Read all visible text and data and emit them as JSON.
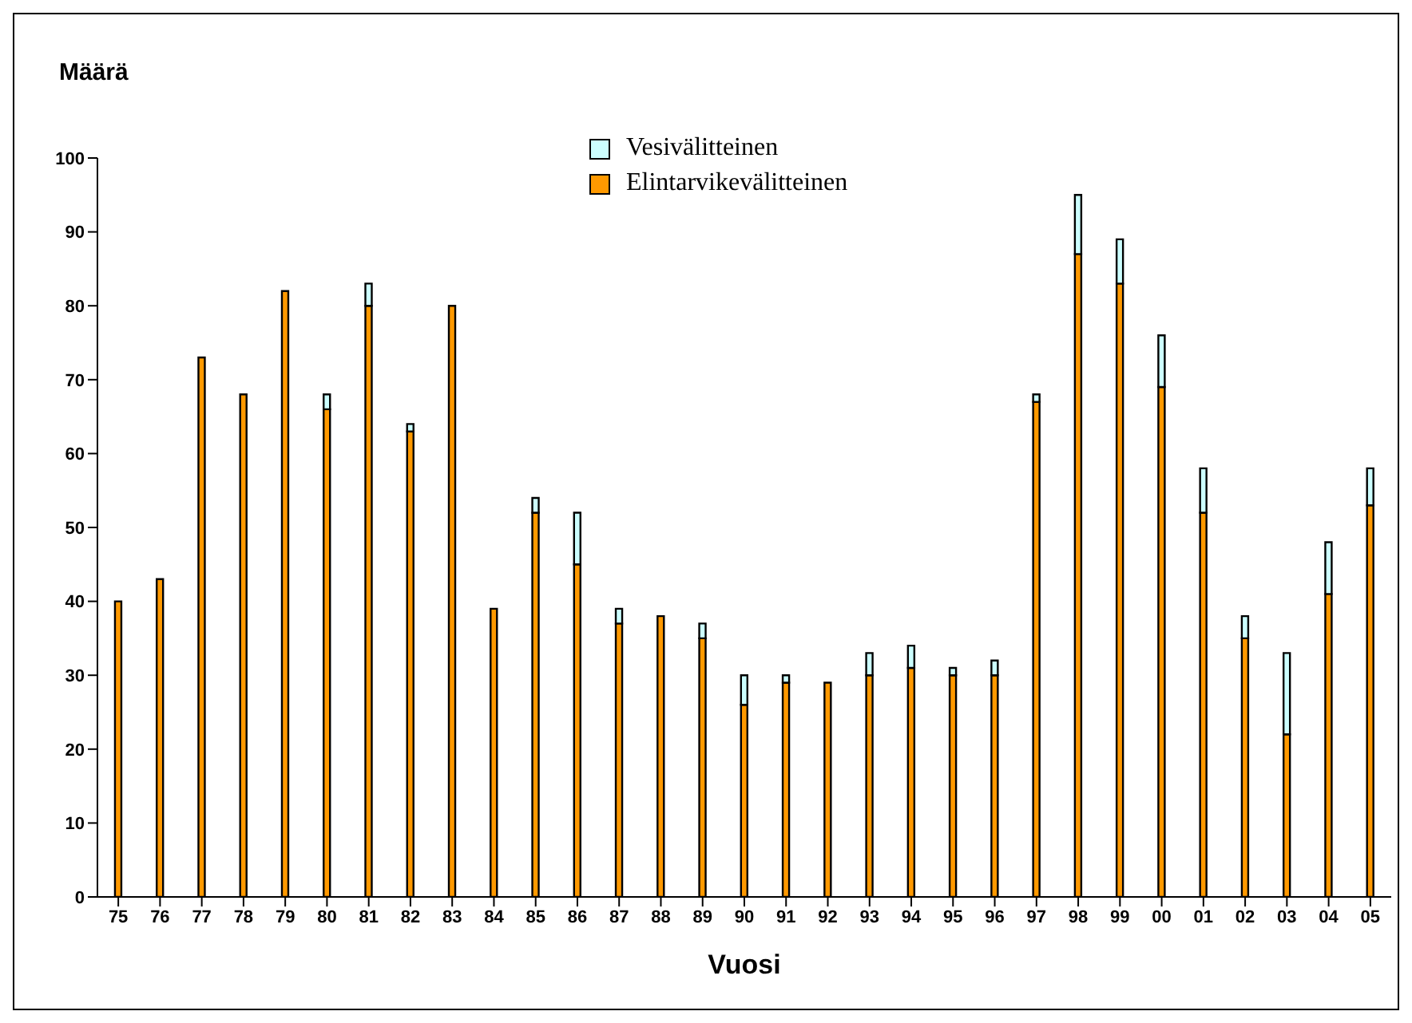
{
  "chart_data": {
    "type": "bar",
    "stacked": true,
    "ylabel": "Määrä",
    "xlabel": "Vuosi",
    "categories": [
      "75",
      "76",
      "77",
      "78",
      "79",
      "80",
      "81",
      "82",
      "83",
      "84",
      "85",
      "86",
      "87",
      "88",
      "89",
      "90",
      "91",
      "92",
      "93",
      "94",
      "95",
      "96",
      "97",
      "98",
      "99",
      "00",
      "01",
      "02",
      "03",
      "04",
      "05"
    ],
    "series": [
      {
        "name": "Elintarvikevälitteinen",
        "color": "#ff9900",
        "values": [
          40,
          43,
          73,
          68,
          82,
          66,
          80,
          63,
          80,
          39,
          52,
          45,
          37,
          38,
          35,
          26,
          29,
          29,
          30,
          31,
          30,
          30,
          67,
          87,
          83,
          69,
          52,
          35,
          22,
          41,
          53
        ]
      },
      {
        "name": "Vesivälitteinen",
        "color": "#ccffff",
        "values": [
          0,
          0,
          0,
          0,
          0,
          2,
          3,
          1,
          0,
          0,
          2,
          7,
          2,
          0,
          2,
          4,
          1,
          0,
          3,
          3,
          1,
          2,
          1,
          8,
          6,
          7,
          6,
          3,
          11,
          7,
          5
        ]
      }
    ],
    "ylim": [
      0,
      100
    ],
    "yticks": [
      0,
      10,
      20,
      30,
      40,
      50,
      60,
      70,
      80,
      90,
      100
    ],
    "grid": false,
    "legend": "top"
  }
}
